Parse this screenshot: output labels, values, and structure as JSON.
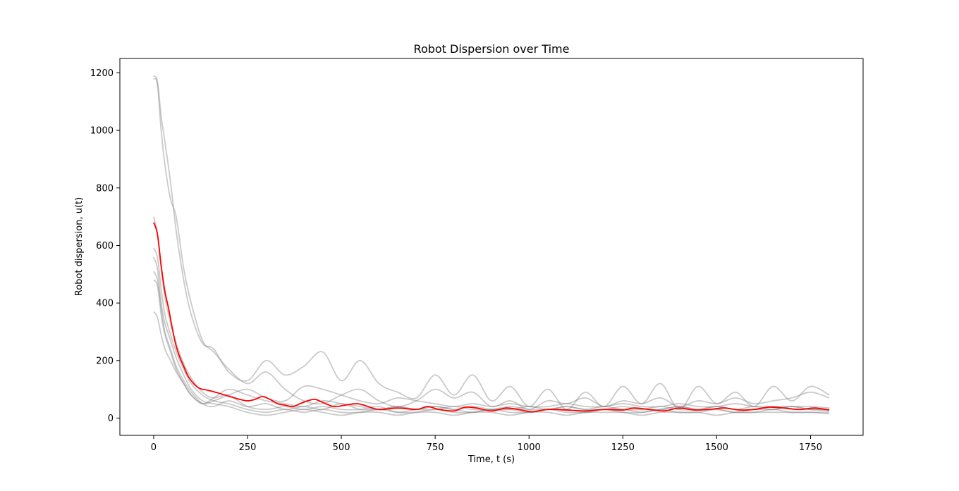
{
  "chart_data": {
    "type": "line",
    "title": "Robot Dispersion over Time",
    "xlabel": "Time, t (s)",
    "ylabel": "Robot dispersion, u(t)",
    "xlim": [
      -90,
      1890
    ],
    "ylim": [
      -60,
      1250
    ],
    "xticks": [
      0,
      250,
      500,
      750,
      1000,
      1250,
      1500,
      1750
    ],
    "yticks": [
      0,
      200,
      400,
      600,
      800,
      1000,
      1200
    ],
    "grid": false,
    "legend": "none",
    "colors": {
      "trials": "#808080",
      "mean": "#ff0000",
      "axes": "#000000",
      "background": "#ffffff"
    },
    "series": [
      {
        "x": [
          0,
          10,
          20,
          30,
          45,
          60,
          80,
          100,
          130,
          160,
          200,
          250,
          300,
          350,
          400,
          450,
          500,
          550,
          600,
          650,
          700,
          750,
          800,
          850,
          900,
          950,
          1000,
          1050,
          1100,
          1150,
          1200,
          1250,
          1300,
          1350,
          1400,
          1450,
          1500,
          1550,
          1600,
          1650,
          1700,
          1750,
          1800
        ],
        "y": [
          1190,
          1170,
          1050,
          960,
          820,
          650,
          480,
          360,
          260,
          240,
          160,
          130,
          200,
          150,
          180,
          230,
          130,
          200,
          120,
          90,
          70,
          150,
          80,
          150,
          60,
          110,
          40,
          100,
          30,
          90,
          40,
          110,
          50,
          120,
          30,
          110,
          50,
          90,
          40,
          110,
          60,
          110,
          80
        ]
      },
      {
        "x": [
          0,
          10,
          20,
          30,
          45,
          60,
          80,
          100,
          130,
          160,
          200,
          250,
          300,
          350,
          400,
          450,
          500,
          550,
          600,
          650,
          700,
          750,
          800,
          850,
          900,
          950,
          1000,
          1050,
          1100,
          1150,
          1200,
          1250,
          1300,
          1350,
          1400,
          1450,
          1500,
          1550,
          1600,
          1650,
          1700,
          1750,
          1800
        ],
        "y": [
          1180,
          1160,
          1000,
          880,
          760,
          700,
          520,
          400,
          270,
          230,
          170,
          120,
          160,
          100,
          60,
          50,
          80,
          100,
          60,
          40,
          60,
          100,
          70,
          90,
          40,
          60,
          30,
          60,
          50,
          70,
          40,
          60,
          50,
          70,
          40,
          60,
          50,
          70,
          50,
          60,
          70,
          90,
          70
        ]
      },
      {
        "x": [
          0,
          10,
          20,
          30,
          45,
          60,
          80,
          100,
          130,
          160,
          200,
          250,
          300,
          350,
          400,
          450,
          500,
          550,
          600,
          650,
          700,
          750,
          800,
          850,
          900,
          950,
          1000,
          1050,
          1100,
          1150,
          1200,
          1250,
          1300,
          1350,
          1400,
          1450,
          1500,
          1550,
          1600,
          1650,
          1700,
          1750,
          1800
        ],
        "y": [
          700,
          640,
          520,
          420,
          330,
          260,
          190,
          140,
          90,
          70,
          80,
          40,
          30,
          40,
          30,
          40,
          30,
          30,
          40,
          20,
          30,
          40,
          30,
          20,
          30,
          30,
          20,
          30,
          30,
          20,
          30,
          30,
          20,
          30,
          40,
          30,
          30,
          20,
          30,
          30,
          40,
          30,
          30
        ]
      },
      {
        "x": [
          0,
          10,
          20,
          30,
          45,
          60,
          80,
          100,
          130,
          160,
          200,
          250,
          300,
          350,
          400,
          450,
          500,
          550,
          600,
          650,
          700,
          750,
          800,
          850,
          900,
          950,
          1000,
          1050,
          1100,
          1150,
          1200,
          1250,
          1300,
          1350,
          1400,
          1450,
          1500,
          1550,
          1600,
          1650,
          1700,
          1750,
          1800
        ],
        "y": [
          590,
          560,
          450,
          360,
          290,
          230,
          170,
          120,
          80,
          60,
          50,
          30,
          20,
          30,
          20,
          30,
          20,
          20,
          30,
          20,
          20,
          30,
          20,
          20,
          30,
          20,
          20,
          30,
          20,
          20,
          30,
          20,
          20,
          30,
          20,
          20,
          30,
          20,
          20,
          30,
          20,
          20,
          20
        ]
      },
      {
        "x": [
          0,
          10,
          20,
          30,
          45,
          60,
          80,
          100,
          130,
          160,
          200,
          250,
          300,
          350,
          400,
          450,
          500,
          550,
          600,
          650,
          700,
          750,
          800,
          850,
          900,
          950,
          1000,
          1050,
          1100,
          1150,
          1200,
          1250,
          1300,
          1350,
          1400,
          1450,
          1500,
          1550,
          1600,
          1650,
          1700,
          1750,
          1800
        ],
        "y": [
          560,
          520,
          400,
          330,
          270,
          210,
          150,
          100,
          60,
          50,
          40,
          20,
          10,
          20,
          30,
          20,
          10,
          20,
          20,
          10,
          20,
          20,
          10,
          20,
          20,
          10,
          20,
          20,
          10,
          20,
          20,
          20,
          10,
          20,
          20,
          20,
          10,
          20,
          20,
          20,
          20,
          20,
          15
        ]
      },
      {
        "x": [
          0,
          10,
          20,
          30,
          45,
          60,
          80,
          100,
          130,
          160,
          200,
          250,
          300,
          350,
          400,
          450,
          500,
          550,
          600,
          650,
          700,
          750,
          800,
          850,
          900,
          950,
          1000,
          1050,
          1100,
          1150,
          1200,
          1250,
          1300,
          1350,
          1400,
          1450,
          1500,
          1550,
          1600,
          1650,
          1700,
          1750,
          1800
        ],
        "y": [
          510,
          480,
          380,
          300,
          240,
          180,
          130,
          90,
          50,
          40,
          60,
          40,
          50,
          30,
          40,
          30,
          50,
          30,
          30,
          40,
          30,
          30,
          40,
          30,
          30,
          40,
          30,
          30,
          40,
          30,
          40,
          30,
          30,
          40,
          30,
          30,
          40,
          30,
          40,
          30,
          40,
          30,
          30
        ]
      },
      {
        "x": [
          0,
          10,
          20,
          30,
          45,
          60,
          80,
          100,
          130,
          160,
          200,
          250,
          300,
          350,
          400,
          450,
          500,
          550,
          600,
          650,
          700,
          750,
          800,
          850,
          900,
          950,
          1000,
          1050,
          1100,
          1150,
          1200,
          1250,
          1300,
          1350,
          1400,
          1450,
          1500,
          1550,
          1600,
          1650,
          1700,
          1750,
          1800
        ],
        "y": [
          480,
          460,
          360,
          290,
          230,
          170,
          120,
          80,
          50,
          70,
          100,
          80,
          60,
          50,
          40,
          60,
          50,
          40,
          30,
          40,
          30,
          40,
          30,
          40,
          30,
          30,
          40,
          30,
          40,
          30,
          30,
          40,
          30,
          30,
          40,
          30,
          40,
          30,
          30,
          40,
          30,
          30,
          25
        ]
      },
      {
        "x": [
          0,
          10,
          20,
          30,
          45,
          60,
          80,
          100,
          130,
          160,
          200,
          250,
          300,
          350,
          400,
          450,
          500,
          550,
          600,
          650,
          700,
          750,
          800,
          850,
          900,
          950,
          1000,
          1050,
          1100,
          1150,
          1200,
          1250,
          1300,
          1350,
          1400,
          1450,
          1500,
          1550,
          1600,
          1650,
          1700,
          1750,
          1800
        ],
        "y": [
          370,
          350,
          290,
          240,
          200,
          160,
          120,
          80,
          50,
          60,
          80,
          100,
          70,
          60,
          110,
          100,
          80,
          60,
          50,
          70,
          60,
          50,
          40,
          50,
          40,
          50,
          40,
          40,
          50,
          40,
          40,
          50,
          40,
          40,
          50,
          40,
          40,
          50,
          40,
          40,
          40,
          40,
          35
        ]
      }
    ],
    "mean_series": {
      "x": [
        0,
        10,
        20,
        30,
        40,
        50,
        60,
        70,
        80,
        90,
        100,
        110,
        120,
        130,
        140,
        150,
        170,
        190,
        210,
        230,
        250,
        270,
        290,
        310,
        330,
        350,
        370,
        390,
        410,
        430,
        450,
        480,
        510,
        540,
        560,
        600,
        650,
        700,
        730,
        760,
        800,
        830,
        860,
        900,
        940,
        980,
        1010,
        1050,
        1100,
        1150,
        1200,
        1250,
        1280,
        1320,
        1360,
        1400,
        1440,
        1480,
        1520,
        1560,
        1600,
        1640,
        1680,
        1720,
        1760,
        1800
      ],
      "y": [
        680,
        640,
        530,
        440,
        380,
        310,
        250,
        210,
        180,
        150,
        130,
        115,
        105,
        100,
        98,
        95,
        88,
        80,
        72,
        65,
        60,
        65,
        75,
        65,
        50,
        45,
        40,
        50,
        60,
        65,
        55,
        40,
        45,
        50,
        45,
        30,
        35,
        30,
        40,
        30,
        25,
        38,
        35,
        25,
        35,
        28,
        22,
        30,
        28,
        25,
        30,
        28,
        35,
        30,
        25,
        35,
        28,
        30,
        35,
        28,
        30,
        38,
        35,
        30,
        35,
        28
      ]
    }
  }
}
